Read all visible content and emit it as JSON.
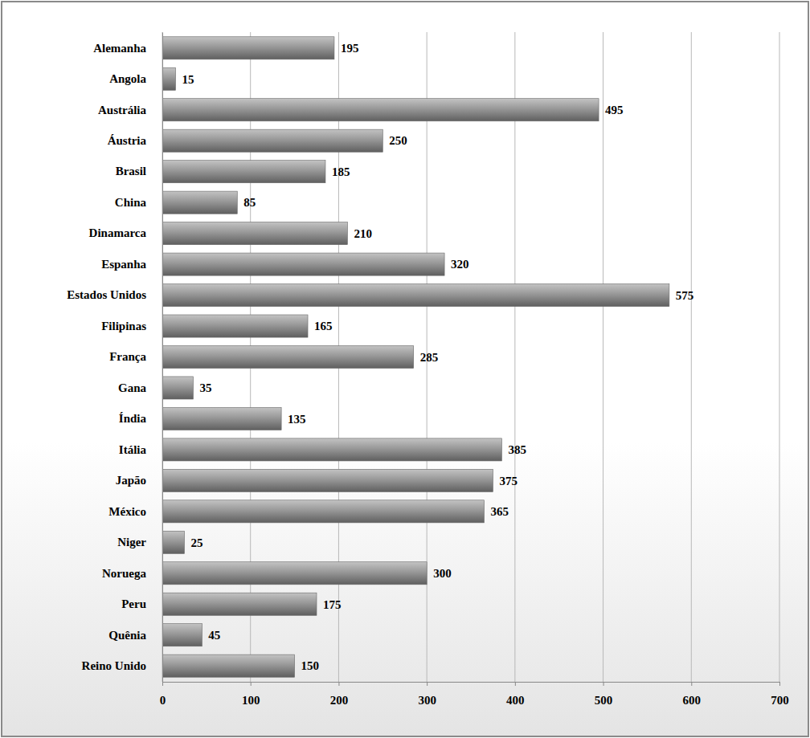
{
  "chart_data": {
    "type": "bar",
    "orientation": "horizontal",
    "categories": [
      "Alemanha",
      "Angola",
      "Austrália",
      "Áustria",
      "Brasil",
      "China",
      "Dinamarca",
      "Espanha",
      "Estados Unidos",
      "Filipinas",
      "França",
      "Gana",
      "Índia",
      "Itália",
      "Japão",
      "México",
      "Niger",
      "Noruega",
      "Peru",
      "Quênia",
      "Reino Unido"
    ],
    "values": [
      195,
      15,
      495,
      250,
      185,
      85,
      210,
      320,
      575,
      165,
      285,
      35,
      135,
      385,
      375,
      365,
      25,
      300,
      175,
      45,
      150
    ],
    "color": "#7f7f7f",
    "xlim": [
      0,
      700
    ],
    "xticks": [
      0,
      100,
      200,
      300,
      400,
      500,
      600,
      700
    ],
    "grid": true,
    "data_labels": true
  }
}
